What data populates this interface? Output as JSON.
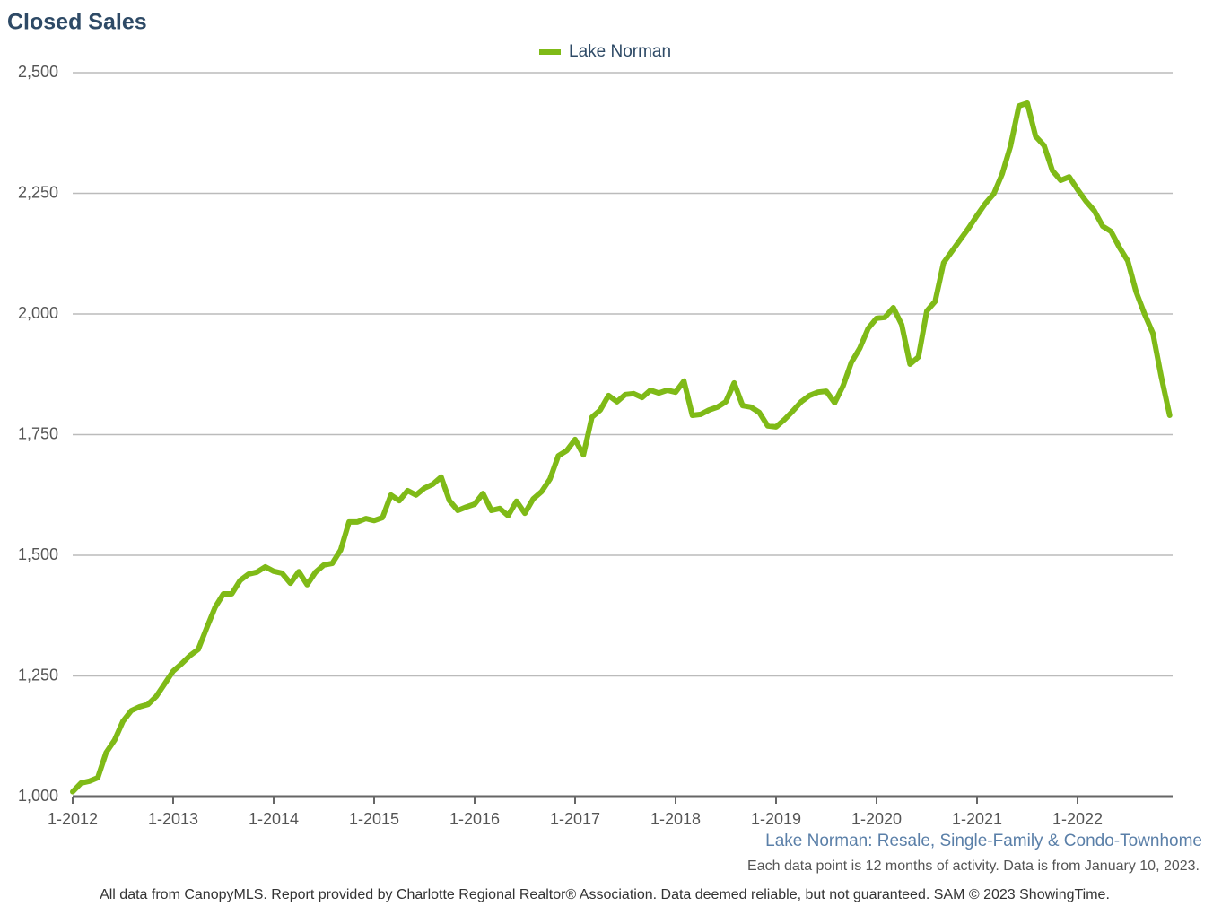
{
  "chart_data": {
    "type": "line",
    "title": "Closed Sales",
    "subtitle": "Lake Norman: Resale, Single-Family & Condo-Townhome",
    "note": "Each data point is 12 months of activity. Data is from January 10, 2023.",
    "footer": "All data from CanopyMLS. Report provided by Charlotte Regional Realtor® Association. Data deemed reliable, but not guaranteed. SAM © 2023 ShowingTime.",
    "categories": [
      "1-2012",
      null,
      null,
      null,
      null,
      null,
      null,
      null,
      null,
      null,
      null,
      null,
      "1-2013",
      null,
      null,
      null,
      null,
      null,
      null,
      null,
      null,
      null,
      null,
      null,
      "1-2014",
      null,
      null,
      null,
      null,
      null,
      null,
      null,
      null,
      null,
      null,
      null,
      "1-2015",
      null,
      null,
      null,
      null,
      null,
      null,
      null,
      null,
      null,
      null,
      null,
      "1-2016",
      null,
      null,
      null,
      null,
      null,
      null,
      null,
      null,
      null,
      null,
      null,
      "1-2017",
      null,
      null,
      null,
      null,
      null,
      null,
      null,
      null,
      null,
      null,
      null,
      "1-2018",
      null,
      null,
      null,
      null,
      null,
      null,
      null,
      null,
      null,
      null,
      null,
      "1-2019",
      null,
      null,
      null,
      null,
      null,
      null,
      null,
      null,
      null,
      null,
      null,
      "1-2020",
      null,
      null,
      null,
      null,
      null,
      null,
      null,
      null,
      null,
      null,
      null,
      "1-2021",
      null,
      null,
      null,
      null,
      null,
      null,
      null,
      null,
      null,
      null,
      null,
      "1-2022",
      null,
      null,
      null,
      null,
      null,
      null,
      null,
      null,
      null,
      null,
      null
    ],
    "series": [
      {
        "name": "Lake Norman",
        "color": "#7fba17",
        "values": [
          1010,
          1028,
          1032,
          1039,
          1091,
          1117,
          1156,
          1178,
          1186,
          1191,
          1208,
          1234,
          1260,
          1275,
          1292,
          1305,
          1349,
          1392,
          1420,
          1420,
          1448,
          1461,
          1465,
          1476,
          1467,
          1463,
          1442,
          1466,
          1439,
          1465,
          1480,
          1483,
          1511,
          1569,
          1569,
          1576,
          1572,
          1578,
          1625,
          1613,
          1634,
          1625,
          1639,
          1647,
          1662,
          1613,
          1593,
          1600,
          1606,
          1628,
          1593,
          1597,
          1582,
          1612,
          1587,
          1617,
          1632,
          1658,
          1706,
          1717,
          1740,
          1708,
          1786,
          1801,
          1831,
          1818,
          1833,
          1835,
          1827,
          1842,
          1836,
          1842,
          1838,
          1861,
          1790,
          1792,
          1801,
          1807,
          1818,
          1857,
          1810,
          1807,
          1796,
          1768,
          1766,
          1781,
          1799,
          1818,
          1831,
          1838,
          1840,
          1816,
          1851,
          1900,
          1929,
          1970,
          1991,
          1993,
          2013,
          1978,
          1896,
          1911,
          2006,
          2026,
          2106,
          2130,
          2154,
          2178,
          2204,
          2229,
          2249,
          2290,
          2348,
          2431,
          2437,
          2368,
          2349,
          2297,
          2277,
          2284,
          2258,
          2234,
          2214,
          2182,
          2171,
          2138,
          2110,
          2046,
          2000,
          1960,
          1870,
          1790
        ]
      }
    ],
    "ylim": [
      1000,
      2500
    ],
    "yticks": [
      {
        "value": 1000,
        "label": "1,000"
      },
      {
        "value": 1250,
        "label": "1,250"
      },
      {
        "value": 1500,
        "label": "1,500"
      },
      {
        "value": 1750,
        "label": "1,750"
      },
      {
        "value": 2000,
        "label": "2,000"
      },
      {
        "value": 2250,
        "label": "2,250"
      },
      {
        "value": 2500,
        "label": "2,500"
      }
    ],
    "grid": true,
    "legend": "top"
  }
}
